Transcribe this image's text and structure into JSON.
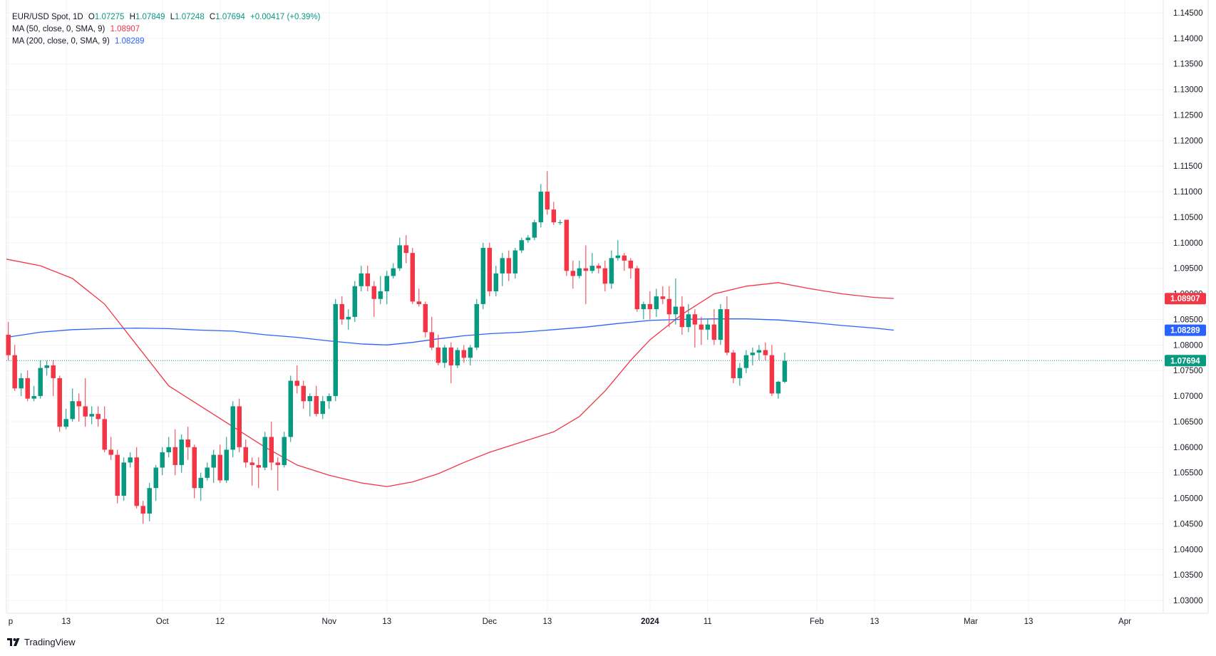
{
  "legend": {
    "symbol": "EUR/USD Spot, 1D",
    "open_label": "O",
    "open": "1.07275",
    "high_label": "H",
    "high": "1.07849",
    "low_label": "L",
    "low": "1.07248",
    "close_label": "C",
    "close": "1.07694",
    "change": "+0.00417 (+0.39%)",
    "ma50_label": "MA (50, close, 0, SMA, 9)",
    "ma50_value": "1.08907",
    "ma200_label": "MA (200, close, 0, SMA, 9)",
    "ma200_value": "1.08289"
  },
  "brand": {
    "name": "TradingView"
  },
  "colors": {
    "up": "#089981",
    "down": "#f23645",
    "ma50": "#f23645",
    "ma200": "#2962ff",
    "grid": "#f0f3fa"
  },
  "chart_data": {
    "type": "candlestick",
    "y_axis_ticks": [
      "1.14500",
      "1.14000",
      "1.13500",
      "1.13000",
      "1.12500",
      "1.12000",
      "1.11500",
      "1.11000",
      "1.10500",
      "1.10000",
      "1.09500",
      "1.09000",
      "1.08500",
      "1.08000",
      "1.07500",
      "1.07000",
      "1.06500",
      "1.06000",
      "1.05500",
      "1.05000",
      "1.04500",
      "1.04000",
      "1.03500",
      "1.03000"
    ],
    "y_range": [
      1.0275,
      1.1475
    ],
    "x_axis_ticks": [
      {
        "label": "p",
        "index": 0
      },
      {
        "label": "13",
        "index": 9
      },
      {
        "label": "Oct",
        "index": 24
      },
      {
        "label": "12",
        "index": 33
      },
      {
        "label": "Nov",
        "index": 50
      },
      {
        "label": "13",
        "index": 59
      },
      {
        "label": "Dec",
        "index": 75
      },
      {
        "label": "13",
        "index": 84
      },
      {
        "label": "2024",
        "index": 100,
        "bold": true
      },
      {
        "label": "11",
        "index": 109
      },
      {
        "label": "Feb",
        "index": 126
      },
      {
        "label": "13",
        "index": 135
      },
      {
        "label": "Mar",
        "index": 150
      },
      {
        "label": "13",
        "index": 159
      },
      {
        "label": "Apr",
        "index": 174
      }
    ],
    "x_range": [
      -0.3,
      180
    ],
    "last_price": "1.07694",
    "ma50_last": "1.08907",
    "ma200_last": "1.08289",
    "candles": [
      [
        1.082,
        1.0845,
        1.077,
        1.078
      ],
      [
        1.078,
        1.08,
        1.071,
        1.0715
      ],
      [
        1.0715,
        1.0745,
        1.07,
        1.0735
      ],
      [
        1.0735,
        1.075,
        1.069,
        1.0695
      ],
      [
        1.0695,
        1.072,
        1.069,
        1.07
      ],
      [
        1.07,
        1.077,
        1.0695,
        1.0755
      ],
      [
        1.0755,
        1.077,
        1.074,
        1.076
      ],
      [
        1.076,
        1.077,
        1.07,
        1.0735
      ],
      [
        1.0735,
        1.074,
        1.063,
        1.064
      ],
      [
        1.064,
        1.0675,
        1.0635,
        1.0655
      ],
      [
        1.0655,
        1.0715,
        1.065,
        1.069
      ],
      [
        1.069,
        1.0705,
        1.065,
        1.068
      ],
      [
        1.068,
        1.0735,
        1.064,
        1.066
      ],
      [
        1.066,
        1.068,
        1.0645,
        1.0665
      ],
      [
        1.0665,
        1.068,
        1.064,
        1.0655
      ],
      [
        1.0655,
        1.068,
        1.059,
        1.0595
      ],
      [
        1.0595,
        1.062,
        1.0575,
        1.0585
      ],
      [
        1.0585,
        1.0595,
        1.049,
        1.0505
      ],
      [
        1.0505,
        1.058,
        1.0495,
        1.057
      ],
      [
        1.057,
        1.059,
        1.056,
        1.058
      ],
      [
        1.058,
        1.06,
        1.048,
        1.0485
      ],
      [
        1.0485,
        1.0495,
        1.045,
        1.047
      ],
      [
        1.047,
        1.053,
        1.0455,
        1.052
      ],
      [
        1.052,
        1.0565,
        1.0495,
        1.056
      ],
      [
        1.056,
        1.06,
        1.0545,
        1.059
      ],
      [
        1.059,
        1.062,
        1.058,
        1.06
      ],
      [
        1.06,
        1.0635,
        1.0545,
        1.0565
      ],
      [
        1.0565,
        1.0625,
        1.055,
        1.0615
      ],
      [
        1.0615,
        1.064,
        1.0575,
        1.06
      ],
      [
        1.06,
        1.0605,
        1.05,
        1.052
      ],
      [
        1.052,
        1.055,
        1.0495,
        1.054
      ],
      [
        1.054,
        1.057,
        1.0535,
        1.056
      ],
      [
        1.056,
        1.0595,
        1.053,
        1.0585
      ],
      [
        1.0585,
        1.0605,
        1.053,
        1.0535
      ],
      [
        1.0535,
        1.062,
        1.053,
        1.0595
      ],
      [
        1.0595,
        1.069,
        1.058,
        1.068
      ],
      [
        1.068,
        1.0695,
        1.059,
        1.06
      ],
      [
        1.06,
        1.0615,
        1.056,
        1.057
      ],
      [
        1.057,
        1.058,
        1.0525,
        1.0565
      ],
      [
        1.0565,
        1.058,
        1.052,
        1.056
      ],
      [
        1.056,
        1.063,
        1.0555,
        1.062
      ],
      [
        1.062,
        1.065,
        1.0555,
        1.057
      ],
      [
        1.057,
        1.058,
        1.0515,
        1.0565
      ],
      [
        1.0565,
        1.063,
        1.056,
        1.062
      ],
      [
        1.062,
        1.074,
        1.061,
        1.073
      ],
      [
        1.073,
        1.076,
        1.0705,
        1.072
      ],
      [
        1.072,
        1.073,
        1.0675,
        1.069
      ],
      [
        1.069,
        1.0705,
        1.066,
        1.07
      ],
      [
        1.07,
        1.072,
        1.066,
        1.0665
      ],
      [
        1.0665,
        1.07,
        1.0655,
        1.069
      ],
      [
        1.069,
        1.0705,
        1.0675,
        1.07
      ],
      [
        1.07,
        1.089,
        1.069,
        1.088
      ],
      [
        1.088,
        1.0895,
        1.084,
        1.085
      ],
      [
        1.085,
        1.087,
        1.083,
        1.0855
      ],
      [
        1.0855,
        1.0925,
        1.0845,
        1.0915
      ],
      [
        1.0915,
        1.0955,
        1.0905,
        1.094
      ],
      [
        1.094,
        1.0955,
        1.0905,
        1.0915
      ],
      [
        1.0915,
        1.0925,
        1.0855,
        1.089
      ],
      [
        1.089,
        1.0935,
        1.088,
        1.0905
      ],
      [
        1.0905,
        1.0945,
        1.088,
        1.0935
      ],
      [
        1.0935,
        1.096,
        1.093,
        1.095
      ],
      [
        1.095,
        1.101,
        1.0945,
        1.0995
      ],
      [
        1.0995,
        1.1015,
        1.096,
        1.098
      ],
      [
        1.098,
        1.099,
        1.088,
        1.0885
      ],
      [
        1.0885,
        1.091,
        1.0875,
        1.088
      ],
      [
        1.088,
        1.0885,
        1.0815,
        1.0825
      ],
      [
        1.0825,
        1.0855,
        1.079,
        1.0795
      ],
      [
        1.0795,
        1.082,
        1.076,
        1.0765
      ],
      [
        1.0765,
        1.08,
        1.0755,
        1.0795
      ],
      [
        1.0795,
        1.0805,
        1.0725,
        1.076
      ],
      [
        1.076,
        1.0795,
        1.0755,
        1.079
      ],
      [
        1.079,
        1.08,
        1.0765,
        1.0775
      ],
      [
        1.0775,
        1.08,
        1.076,
        1.0795
      ],
      [
        1.0795,
        1.089,
        1.079,
        1.088
      ],
      [
        1.088,
        1.1,
        1.087,
        1.099
      ],
      [
        1.099,
        1.1,
        1.0895,
        1.0905
      ],
      [
        1.0905,
        1.0955,
        1.0895,
        1.094
      ],
      [
        1.094,
        1.098,
        1.0915,
        1.097
      ],
      [
        1.097,
        1.0985,
        1.0925,
        1.094
      ],
      [
        1.094,
        1.099,
        1.093,
        1.0985
      ],
      [
        1.0985,
        1.101,
        1.098,
        1.1005
      ],
      [
        1.1005,
        1.1015,
        1.1,
        1.101
      ],
      [
        1.101,
        1.1045,
        1.1005,
        1.104
      ],
      [
        1.104,
        1.1115,
        1.103,
        1.11
      ],
      [
        1.11,
        1.114,
        1.1055,
        1.1065
      ],
      [
        1.1065,
        1.108,
        1.1035,
        1.104
      ],
      [
        1.104,
        1.1045,
        1.1035,
        1.104
      ],
      [
        1.1045,
        1.1045,
        1.0935,
        1.0945
      ],
      [
        1.0945,
        1.0965,
        1.091,
        1.0935
      ],
      [
        1.0935,
        1.0965,
        1.093,
        1.095
      ],
      [
        1.095,
        1.0995,
        1.088,
        1.0945
      ],
      [
        1.0945,
        1.098,
        1.094,
        1.0955
      ],
      [
        1.0955,
        1.096,
        1.094,
        1.095
      ],
      [
        1.095,
        1.0965,
        1.0905,
        1.092
      ],
      [
        1.092,
        1.0985,
        1.091,
        1.097
      ],
      [
        1.097,
        1.1005,
        1.0965,
        1.0975
      ],
      [
        1.0975,
        1.098,
        1.0945,
        1.0965
      ],
      [
        1.0965,
        1.097,
        1.093,
        1.095
      ],
      [
        1.095,
        1.0955,
        1.0865,
        1.087
      ],
      [
        1.087,
        1.0885,
        1.085,
        1.088
      ],
      [
        1.088,
        1.0905,
        1.085,
        1.087
      ],
      [
        1.087,
        1.091,
        1.0855,
        1.0895
      ],
      [
        1.0895,
        1.0915,
        1.088,
        1.089
      ],
      [
        1.089,
        1.0915,
        1.0835,
        1.086
      ],
      [
        1.086,
        1.093,
        1.084,
        1.0875
      ],
      [
        1.0875,
        1.0895,
        1.082,
        1.0835
      ],
      [
        1.0835,
        1.088,
        1.0825,
        1.086
      ],
      [
        1.086,
        1.087,
        1.0795,
        1.084
      ],
      [
        1.084,
        1.0855,
        1.08,
        1.083
      ],
      [
        1.083,
        1.085,
        1.081,
        1.084
      ],
      [
        1.084,
        1.087,
        1.08,
        1.081
      ],
      [
        1.081,
        1.088,
        1.08,
        1.087
      ],
      [
        1.087,
        1.0895,
        1.078,
        1.0785
      ],
      [
        1.0785,
        1.079,
        1.0725,
        1.0735
      ],
      [
        1.0735,
        1.0765,
        1.072,
        1.0755
      ],
      [
        1.0755,
        1.079,
        1.0745,
        1.078
      ],
      [
        1.078,
        1.0795,
        1.076,
        1.0785
      ],
      [
        1.0785,
        1.08,
        1.077,
        1.079
      ],
      [
        1.079,
        1.0805,
        1.077,
        1.078
      ],
      [
        1.078,
        1.08,
        1.07,
        1.0705
      ],
      [
        1.0705,
        1.073,
        1.0695,
        1.0728
      ],
      [
        1.0728,
        1.0785,
        1.0725,
        1.0769
      ]
    ],
    "ma50": [
      [
        -0.3,
        1.0968
      ],
      [
        5,
        1.0955
      ],
      [
        10,
        1.093
      ],
      [
        15,
        1.088
      ],
      [
        20,
        1.08
      ],
      [
        25,
        1.072
      ],
      [
        30,
        1.068
      ],
      [
        35,
        1.064
      ],
      [
        40,
        1.06
      ],
      [
        45,
        1.0565
      ],
      [
        50,
        1.0545
      ],
      [
        55,
        1.053
      ],
      [
        59,
        1.0523
      ],
      [
        63,
        1.0532
      ],
      [
        67,
        1.0548
      ],
      [
        71,
        1.057
      ],
      [
        75,
        1.059
      ],
      [
        80,
        1.061
      ],
      [
        85,
        1.063
      ],
      [
        89,
        1.066
      ],
      [
        93,
        1.071
      ],
      [
        97,
        1.077
      ],
      [
        100,
        1.081
      ],
      [
        105,
        1.086
      ],
      [
        110,
        1.09
      ],
      [
        115,
        1.0915
      ],
      [
        120,
        1.0922
      ],
      [
        125,
        1.091
      ],
      [
        130,
        1.09
      ],
      [
        135,
        1.0893
      ],
      [
        138,
        1.0891
      ]
    ],
    "ma200": [
      [
        -0.3,
        1.0815
      ],
      [
        5,
        1.0825
      ],
      [
        10,
        1.083
      ],
      [
        15,
        1.0832
      ],
      [
        20,
        1.0833
      ],
      [
        25,
        1.0832
      ],
      [
        30,
        1.0829
      ],
      [
        35,
        1.0827
      ],
      [
        40,
        1.082
      ],
      [
        45,
        1.0815
      ],
      [
        50,
        1.0808
      ],
      [
        55,
        1.0802
      ],
      [
        59,
        1.08
      ],
      [
        63,
        1.0805
      ],
      [
        67,
        1.0812
      ],
      [
        71,
        1.0818
      ],
      [
        75,
        1.0822
      ],
      [
        80,
        1.0825
      ],
      [
        85,
        1.083
      ],
      [
        90,
        1.0835
      ],
      [
        95,
        1.0842
      ],
      [
        100,
        1.0848
      ],
      [
        105,
        1.085
      ],
      [
        110,
        1.0851
      ],
      [
        115,
        1.0851
      ],
      [
        120,
        1.0849
      ],
      [
        125,
        1.0844
      ],
      [
        130,
        1.0838
      ],
      [
        135,
        1.0833
      ],
      [
        138,
        1.0829
      ]
    ]
  }
}
